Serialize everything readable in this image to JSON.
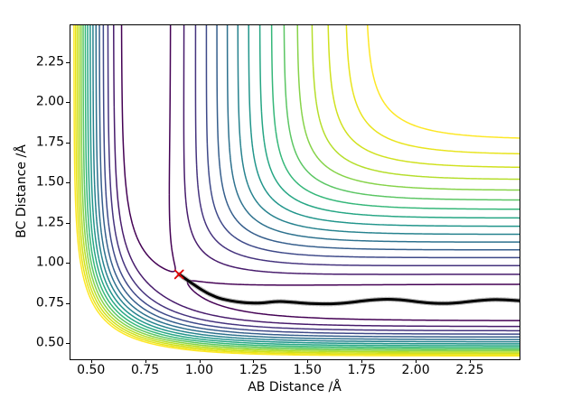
{
  "figure": {
    "background": "#ffffff",
    "spine_color": "#000000",
    "tick_color": "#000000"
  },
  "chart_data": {
    "type": "contour",
    "xlabel": "AB Distance /Å",
    "ylabel": "BC Distance /Å",
    "xlim": [
      0.405,
      2.48
    ],
    "ylim": [
      0.4,
      2.48
    ],
    "grid": false,
    "legend": null,
    "x_ticks": {
      "values": [
        0.5,
        0.75,
        1.0,
        1.25,
        1.5,
        1.75,
        2.0,
        2.25
      ],
      "labels": [
        "0.50",
        "0.75",
        "1.00",
        "1.25",
        "1.50",
        "1.75",
        "2.00",
        "2.25"
      ]
    },
    "y_ticks": {
      "values": [
        0.5,
        0.75,
        1.0,
        1.25,
        1.5,
        1.75,
        2.0,
        2.25
      ],
      "labels": [
        "0.50",
        "0.75",
        "1.00",
        "1.25",
        "1.50",
        "1.75",
        "2.00",
        "2.25"
      ]
    },
    "surface": {
      "model": "collinear-LEPS",
      "description": "V(rAB,rBC) collinear LEPS potential energy surface, energies in eV",
      "params": {
        "D": 4.7466,
        "beta": 1.9426,
        "re": 0.7414,
        "sato": 0.18
      },
      "contour_levels": {
        "min": -4.52,
        "max": -1.2,
        "count": 16
      },
      "line_width": 1.5,
      "colormap": "viridis",
      "colormap_stops": [
        "#440154",
        "#482878",
        "#3e4989",
        "#31688e",
        "#26828e",
        "#1f9e89",
        "#35b779",
        "#6ece58",
        "#b5de2b",
        "#dde318",
        "#fde725"
      ]
    },
    "trajectory": {
      "name": "reaction-trajectory",
      "color": "#000000",
      "fringe_color": "rgba(120,120,120,0.45)",
      "points": [
        [
          0.907,
          0.929
        ],
        [
          0.925,
          0.912
        ],
        [
          0.945,
          0.893
        ],
        [
          0.965,
          0.874
        ],
        [
          0.985,
          0.856
        ],
        [
          1.005,
          0.838
        ],
        [
          1.025,
          0.822
        ],
        [
          1.045,
          0.807
        ],
        [
          1.065,
          0.795
        ],
        [
          1.085,
          0.784
        ],
        [
          1.105,
          0.776
        ],
        [
          1.13,
          0.768
        ],
        [
          1.155,
          0.762
        ],
        [
          1.18,
          0.757
        ],
        [
          1.21,
          0.7525
        ],
        [
          1.24,
          0.75
        ],
        [
          1.27,
          0.7495
        ],
        [
          1.3,
          0.7515
        ],
        [
          1.33,
          0.7565
        ],
        [
          1.36,
          0.76
        ],
        [
          1.39,
          0.7595
        ],
        [
          1.42,
          0.7565
        ],
        [
          1.45,
          0.753
        ],
        [
          1.48,
          0.75
        ],
        [
          1.51,
          0.7475
        ],
        [
          1.55,
          0.7455
        ],
        [
          1.59,
          0.7445
        ],
        [
          1.63,
          0.746
        ],
        [
          1.67,
          0.75
        ],
        [
          1.71,
          0.756
        ],
        [
          1.75,
          0.7625
        ],
        [
          1.79,
          0.768
        ],
        [
          1.83,
          0.7725
        ],
        [
          1.87,
          0.774
        ],
        [
          1.91,
          0.7725
        ],
        [
          1.95,
          0.768
        ],
        [
          1.99,
          0.761
        ],
        [
          2.03,
          0.7545
        ],
        [
          2.07,
          0.75
        ],
        [
          2.11,
          0.7475
        ],
        [
          2.15,
          0.748
        ],
        [
          2.19,
          0.751
        ],
        [
          2.23,
          0.7565
        ],
        [
          2.27,
          0.7625
        ],
        [
          2.31,
          0.768
        ],
        [
          2.35,
          0.7715
        ],
        [
          2.39,
          0.7715
        ],
        [
          2.43,
          0.769
        ],
        [
          2.48,
          0.765
        ]
      ]
    },
    "start_marker": {
      "symbol": "x",
      "color": "#dd0000",
      "x": 0.907,
      "y": 0.929,
      "size": 9
    }
  }
}
